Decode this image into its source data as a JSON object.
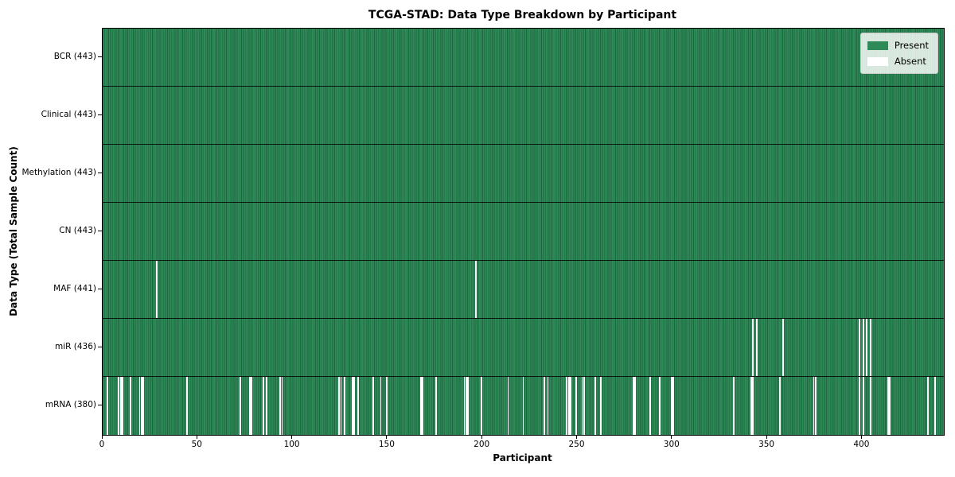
{
  "figure": {
    "title": "TCGA-STAD: Data Type Breakdown by Participant",
    "xlabel": "Participant",
    "ylabel": "Data Type (Total Sample Count)"
  },
  "legend": {
    "items": [
      {
        "label": "Present",
        "color": "#2e8b57"
      },
      {
        "label": "Absent",
        "color": "#ffffff"
      }
    ]
  },
  "colors": {
    "present_fill": "#2e8b57",
    "present_edge": "#1e6640",
    "absent_fill": "#ffffff",
    "row_separator": "#0a0a0a",
    "plot_border": "#000000",
    "legend_bg": "#ebebeb"
  },
  "chart_data": {
    "type": "heatmap",
    "title": "TCGA-STAD: Data Type Breakdown by Participant",
    "xlabel": "Participant",
    "ylabel": "Data Type (Total Sample Count)",
    "legend_entries": [
      "Present",
      "Absent"
    ],
    "legend_position": "upper right",
    "n_participants": 443,
    "x_ticks": [
      0,
      50,
      100,
      150,
      200,
      250,
      300,
      350,
      400
    ],
    "x_range": [
      0,
      443
    ],
    "rows": [
      {
        "label": "BCR (443)",
        "data_type": "BCR",
        "present_count": 443,
        "absent_participants": []
      },
      {
        "label": "Clinical (443)",
        "data_type": "Clinical",
        "present_count": 443,
        "absent_participants": []
      },
      {
        "label": "Methylation (443)",
        "data_type": "Methylation",
        "present_count": 443,
        "absent_participants": []
      },
      {
        "label": "CN (443)",
        "data_type": "CN",
        "present_count": 443,
        "absent_participants": []
      },
      {
        "label": "MAF (441)",
        "data_type": "MAF",
        "present_count": 441,
        "absent_participants": [
          28,
          196
        ]
      },
      {
        "label": "miR (436)",
        "data_type": "miR",
        "present_count": 436,
        "absent_participants": [
          342,
          344,
          358,
          398,
          400,
          402,
          404
        ]
      },
      {
        "label": "mRNA (380)",
        "data_type": "mRNA",
        "present_count": 380,
        "absent_participants": [
          2,
          8,
          9,
          10,
          14,
          19,
          20,
          21,
          44,
          72,
          77,
          78,
          84,
          86,
          93,
          94,
          124,
          125,
          127,
          131,
          132,
          134,
          142,
          146,
          149,
          167,
          168,
          175,
          190,
          191,
          192,
          199,
          213,
          221,
          232,
          234,
          244,
          245,
          246,
          249,
          252,
          253,
          259,
          262,
          279,
          280,
          288,
          293,
          299,
          300,
          332,
          341,
          342,
          356,
          374,
          375,
          398,
          400,
          404,
          413,
          414,
          434,
          438
        ]
      }
    ]
  }
}
